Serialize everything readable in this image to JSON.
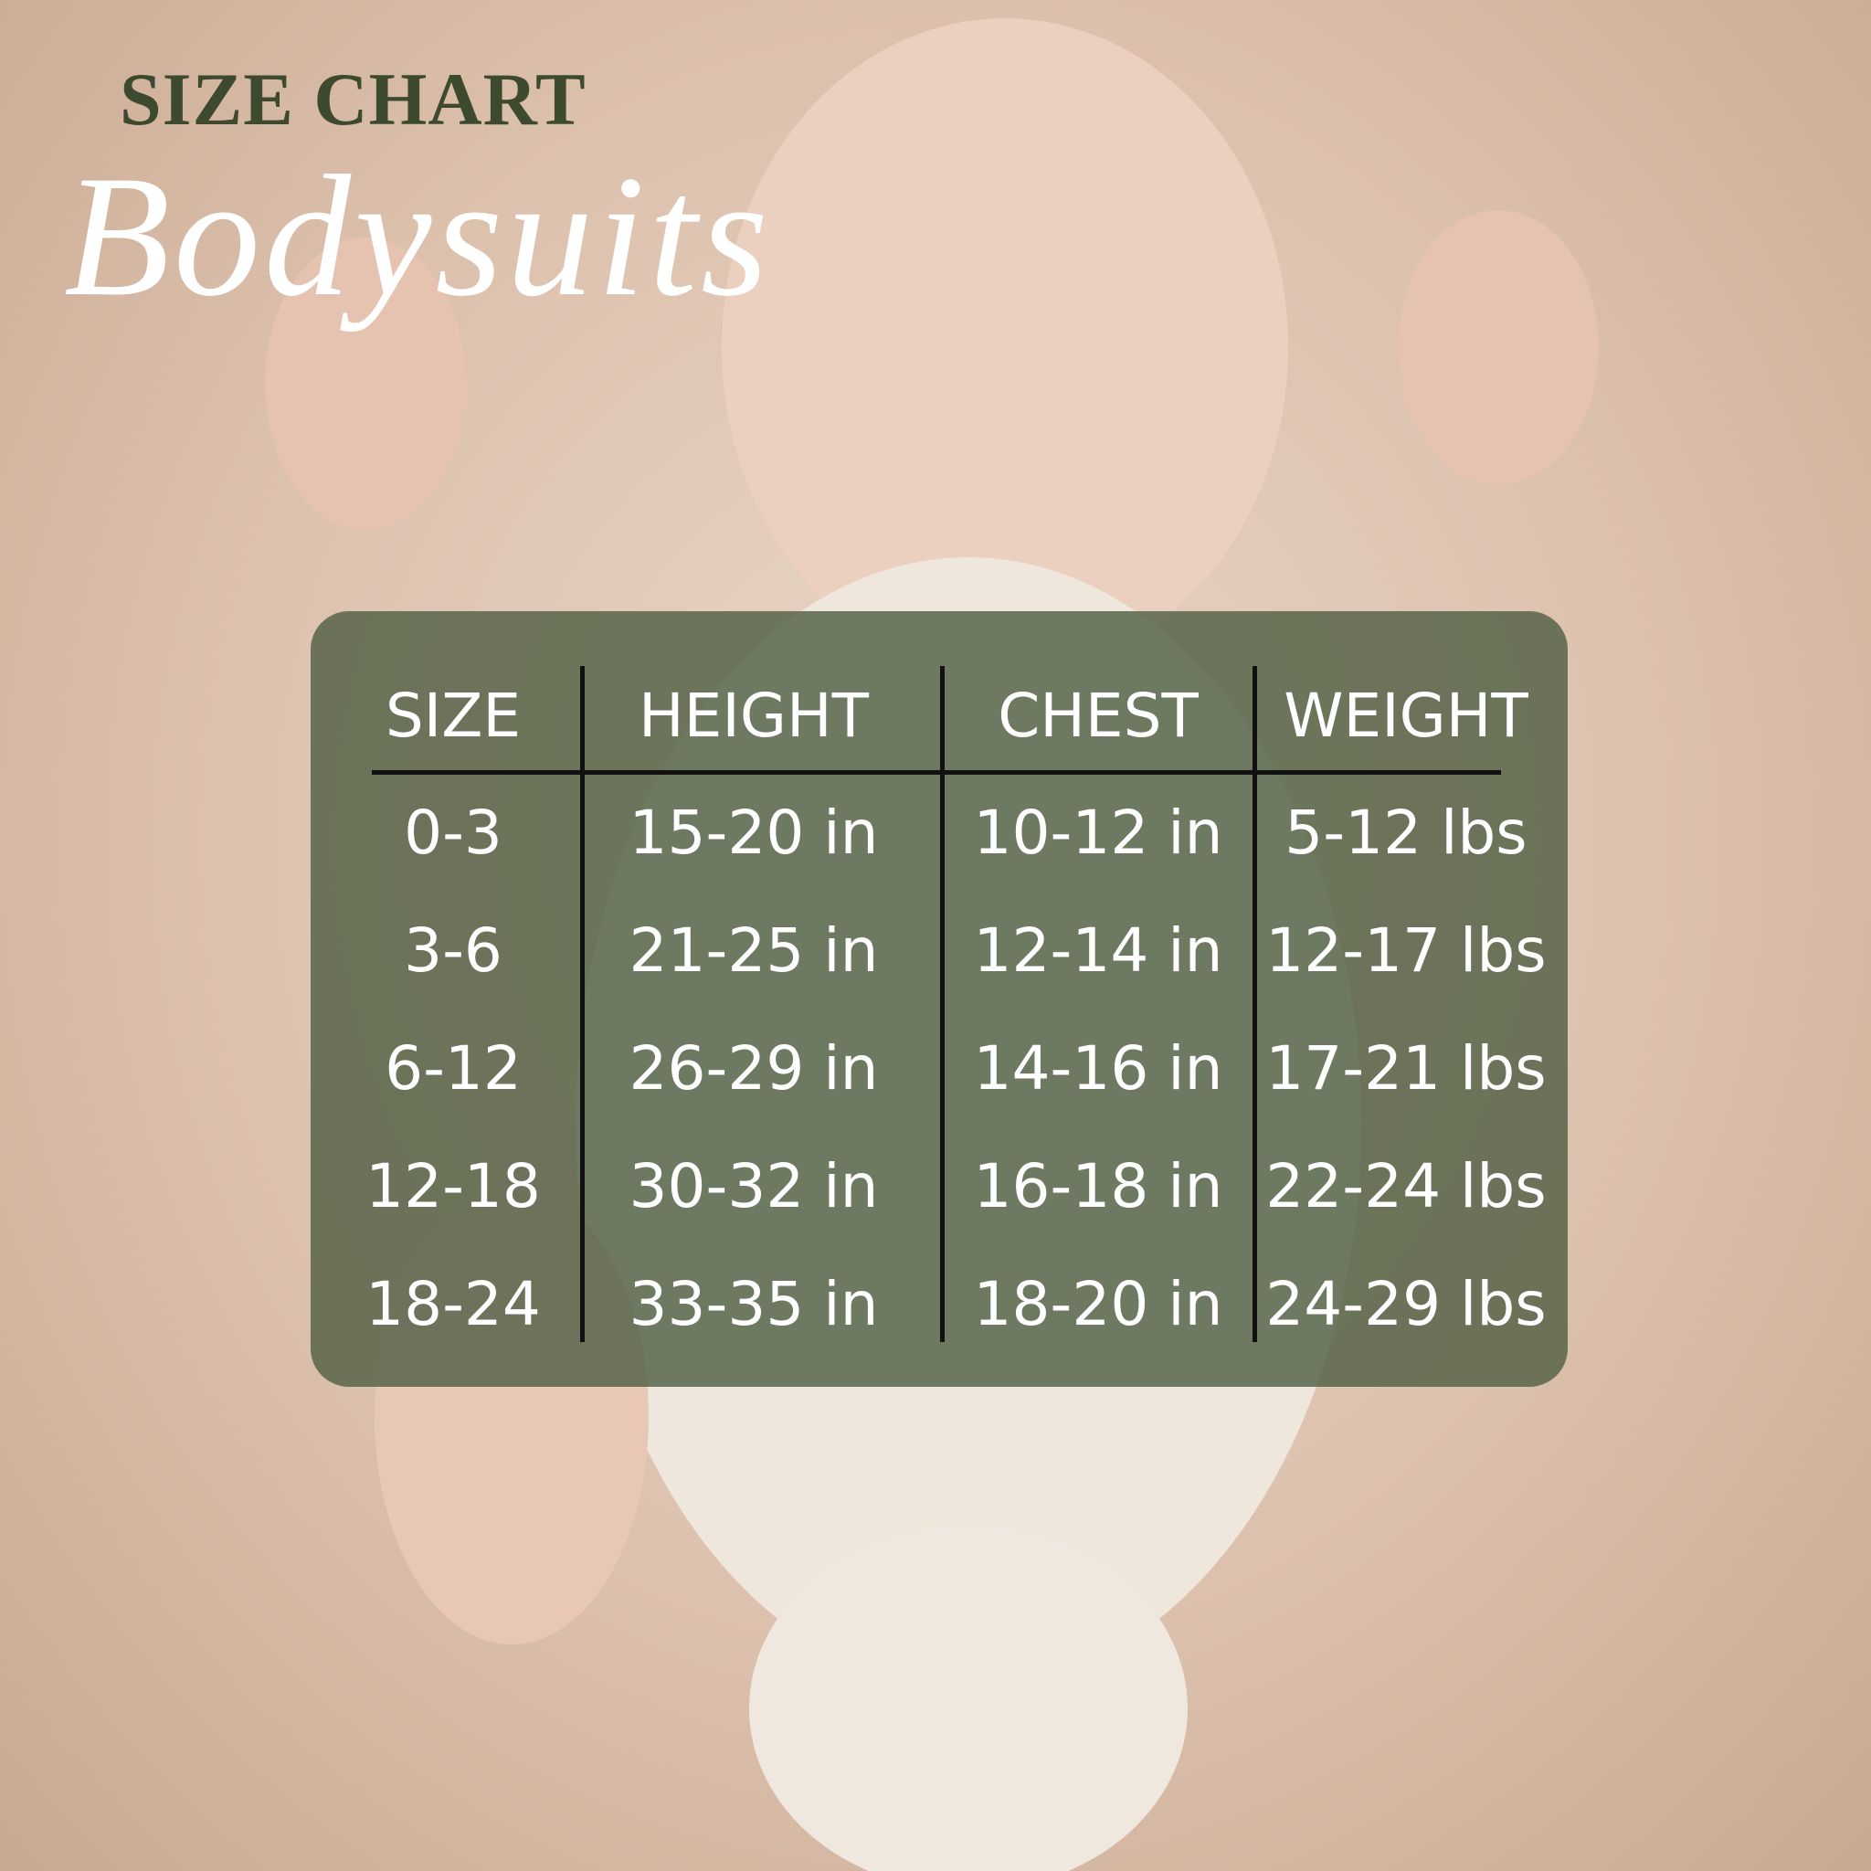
{
  "header": {
    "title": "SIZE CHART",
    "subtitle": "Bodysuits"
  },
  "table": {
    "columns": [
      "SIZE",
      "HEIGHT",
      "CHEST",
      "WEIGHT"
    ],
    "rows": [
      [
        "0-3",
        "15-20 in",
        "10-12 in",
        "5-12 lbs"
      ],
      [
        "3-6",
        "21-25 in",
        "12-14 in",
        "12-17 lbs"
      ],
      [
        "6-12",
        "26-29 in",
        "14-16 in",
        "17-21 lbs"
      ],
      [
        "12-18",
        "30-32 in",
        "16-18 in",
        "22-24 lbs"
      ],
      [
        "18-24",
        "33-35 in",
        "18-20 in",
        "24-29 lbs"
      ]
    ]
  }
}
